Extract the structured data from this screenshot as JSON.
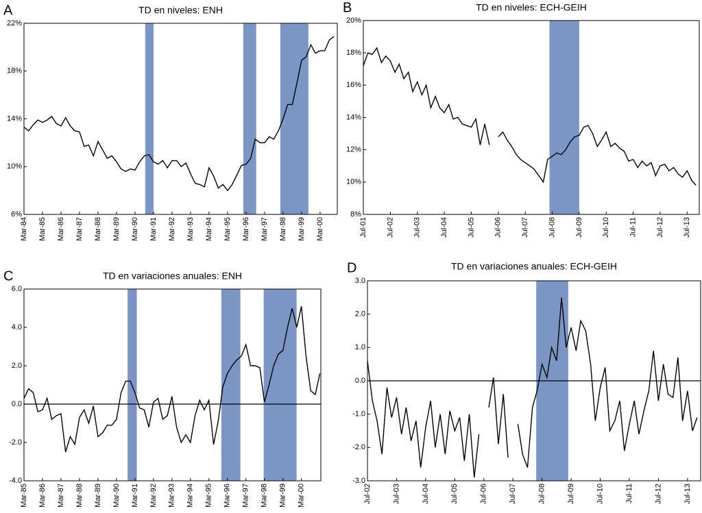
{
  "chart_data": [
    {
      "type": "line",
      "panel_label": "A",
      "title": "TD en niveles: ENH",
      "color": "#000000",
      "shade_color": "#7b96c4",
      "zero_line": false,
      "x": [
        1984,
        1984.25,
        1984.5,
        1984.75,
        1985,
        1985.25,
        1985.5,
        1985.75,
        1986,
        1986.25,
        1986.5,
        1986.75,
        1987,
        1987.25,
        1987.5,
        1987.75,
        1988,
        1988.25,
        1988.5,
        1988.75,
        1989,
        1989.25,
        1989.5,
        1989.75,
        1990,
        1990.25,
        1990.5,
        1990.75,
        1991,
        1991.25,
        1991.5,
        1991.75,
        1992,
        1992.25,
        1992.5,
        1992.75,
        1993,
        1993.25,
        1993.5,
        1993.75,
        1994,
        1994.25,
        1994.5,
        1994.75,
        1995,
        1995.25,
        1995.5,
        1995.75,
        1996,
        1996.25,
        1996.5,
        1996.75,
        1997,
        1997.25,
        1997.5,
        1997.75,
        1998,
        1998.25,
        1998.5,
        1998.75,
        1999,
        1999.25,
        1999.5,
        1999.75,
        2000,
        2000.25,
        2000.5,
        2000.75
      ],
      "values": [
        13.3,
        13.0,
        13.5,
        13.9,
        13.7,
        13.9,
        14.2,
        13.6,
        13.4,
        14.1,
        13.4,
        13.0,
        12.9,
        11.7,
        11.8,
        10.9,
        12.1,
        11.4,
        10.7,
        10.9,
        10.4,
        9.8,
        9.6,
        9.8,
        9.7,
        10.4,
        10.9,
        11.0,
        10.4,
        10.2,
        10.5,
        9.9,
        10.5,
        10.5,
        10.0,
        10.3,
        9.4,
        8.6,
        8.5,
        8.3,
        9.9,
        9.2,
        8.2,
        8.5,
        8.0,
        8.5,
        9.3,
        10.1,
        10.2,
        10.7,
        12.3,
        12.0,
        12.0,
        12.5,
        12.3,
        13.0,
        14.0,
        15.2,
        15.2,
        17.0,
        18.9,
        19.2,
        20.2,
        19.5,
        19.7,
        19.7,
        20.6,
        20.9
      ],
      "xlim": [
        1984,
        2000.93
      ],
      "xticks": [
        {
          "value": 1984,
          "label": "Mar-84"
        },
        {
          "value": 1985,
          "label": "Mar-85"
        },
        {
          "value": 1986,
          "label": "Mar-86"
        },
        {
          "value": 1987,
          "label": "Mar-87"
        },
        {
          "value": 1988,
          "label": "Mar-88"
        },
        {
          "value": 1989,
          "label": "Mar-89"
        },
        {
          "value": 1990,
          "label": "Mar-90"
        },
        {
          "value": 1991,
          "label": "Mar-91"
        },
        {
          "value": 1992,
          "label": "Mar-92"
        },
        {
          "value": 1993,
          "label": "Mar-93"
        },
        {
          "value": 1994,
          "label": "Mar-94"
        },
        {
          "value": 1995,
          "label": "Mar-95"
        },
        {
          "value": 1996,
          "label": "Mar-96"
        },
        {
          "value": 1997,
          "label": "Mar-97"
        },
        {
          "value": 1998,
          "label": "Mar-98"
        },
        {
          "value": 1999,
          "label": "Mar-99"
        },
        {
          "value": 2000,
          "label": "Mar-00"
        }
      ],
      "ylim": [
        6,
        22
      ],
      "yticks": [
        {
          "value": 6,
          "label": "6%"
        },
        {
          "value": 10,
          "label": "10%"
        },
        {
          "value": 14,
          "label": "14%"
        },
        {
          "value": 18,
          "label": "18%"
        },
        {
          "value": 22,
          "label": "22%"
        }
      ],
      "shaded": [
        [
          1990.55,
          1991.0
        ],
        [
          1995.85,
          1996.55
        ],
        [
          1997.85,
          1999.37
        ]
      ]
    },
    {
      "type": "line",
      "panel_label": "B",
      "title": "TD en niveles: ECH-GEIH",
      "color": "#000000",
      "shade_color": "#7b96c4",
      "zero_line": false,
      "x": [
        2001.5,
        2001.67,
        2001.83,
        2002,
        2002.17,
        2002.33,
        2002.5,
        2002.67,
        2002.83,
        2003,
        2003.17,
        2003.33,
        2003.5,
        2003.67,
        2003.83,
        2004,
        2004.17,
        2004.33,
        2004.5,
        2004.67,
        2004.83,
        2005,
        2005.17,
        2005.33,
        2005.5,
        2005.67,
        2005.83,
        2006,
        2006.17,
        2006.33,
        2006.5,
        2006.67,
        2006.83,
        2007,
        2007.17,
        2007.33,
        2007.5,
        2007.67,
        2007.83,
        2008,
        2008.17,
        2008.33,
        2008.5,
        2008.67,
        2008.83,
        2009,
        2009.17,
        2009.33,
        2009.5,
        2009.67,
        2009.83,
        2010,
        2010.17,
        2010.33,
        2010.5,
        2010.67,
        2010.83,
        2011,
        2011.17,
        2011.33,
        2011.5,
        2011.67,
        2011.83,
        2012,
        2012.17,
        2012.33,
        2012.5,
        2012.67,
        2012.83,
        2013,
        2013.17,
        2013.33,
        2013.5,
        2013.67,
        2013.83
      ],
      "values": [
        17.2,
        18.0,
        17.9,
        18.3,
        17.4,
        17.8,
        17.5,
        16.8,
        17.3,
        16.4,
        16.8,
        15.6,
        16.2,
        15.4,
        16.0,
        14.6,
        15.3,
        14.6,
        14.3,
        14.8,
        13.9,
        14.0,
        13.6,
        13.5,
        13.4,
        13.9,
        12.3,
        13.6,
        12.3,
        null,
        12.8,
        13.1,
        12.6,
        12.2,
        11.7,
        11.4,
        11.2,
        11.0,
        10.8,
        10.4,
        10.0,
        11.4,
        11.6,
        11.8,
        11.7,
        12.0,
        12.5,
        12.8,
        12.9,
        13.4,
        13.5,
        13.0,
        12.2,
        12.6,
        13.1,
        12.2,
        12.4,
        12.1,
        11.9,
        11.3,
        11.4,
        10.9,
        11.3,
        11.0,
        11.2,
        10.4,
        11.0,
        11.1,
        10.7,
        10.9,
        10.5,
        10.3,
        10.7,
        10.1,
        9.8
      ],
      "xlim": [
        2001.5,
        2013.95
      ],
      "xticks": [
        {
          "value": 2001.5,
          "label": "Jul-01"
        },
        {
          "value": 2002.5,
          "label": "Jul-02"
        },
        {
          "value": 2003.5,
          "label": "Jul-03"
        },
        {
          "value": 2004.5,
          "label": "Jul-04"
        },
        {
          "value": 2005.5,
          "label": "Jul-05"
        },
        {
          "value": 2006.5,
          "label": "Jul-06"
        },
        {
          "value": 2007.5,
          "label": "Jul-07"
        },
        {
          "value": 2008.5,
          "label": "Jul-08"
        },
        {
          "value": 2009.5,
          "label": "Jul-09"
        },
        {
          "value": 2010.5,
          "label": "Jul-10"
        },
        {
          "value": 2011.5,
          "label": "Jul-11"
        },
        {
          "value": 2012.5,
          "label": "Jul-12"
        },
        {
          "value": 2013.5,
          "label": "Jul-13"
        }
      ],
      "ylim": [
        8,
        20
      ],
      "yticks": [
        {
          "value": 8,
          "label": "8%"
        },
        {
          "value": 10,
          "label": "10%"
        },
        {
          "value": 12,
          "label": "12%"
        },
        {
          "value": 14,
          "label": "14%"
        },
        {
          "value": 16,
          "label": "16%"
        },
        {
          "value": 18,
          "label": "18%"
        },
        {
          "value": 20,
          "label": "20%"
        }
      ],
      "shaded": [
        [
          2008.4,
          2009.5
        ]
      ]
    },
    {
      "type": "line",
      "panel_label": "C",
      "title": "TD en variaciones anuales: ENH",
      "color": "#000000",
      "shade_color": "#7b96c4",
      "zero_line": true,
      "x": [
        1985,
        1985.25,
        1985.5,
        1985.75,
        1986,
        1986.25,
        1986.5,
        1986.75,
        1987,
        1987.25,
        1987.5,
        1987.75,
        1988,
        1988.25,
        1988.5,
        1988.75,
        1989,
        1989.25,
        1989.5,
        1989.75,
        1990,
        1990.25,
        1990.5,
        1990.75,
        1991,
        1991.25,
        1991.5,
        1991.75,
        1992,
        1992.25,
        1992.5,
        1992.75,
        1993,
        1993.25,
        1993.5,
        1993.75,
        1994,
        1994.25,
        1994.5,
        1994.75,
        1995,
        1995.25,
        1995.5,
        1995.75,
        1996,
        1996.25,
        1996.5,
        1996.75,
        1997,
        1997.25,
        1997.5,
        1997.75,
        1998,
        1998.25,
        1998.5,
        1998.75,
        1999,
        1999.25,
        1999.5,
        1999.75,
        2000,
        2000.25,
        2000.5,
        2000.75,
        2001
      ],
      "values": [
        0.3,
        0.8,
        0.6,
        -0.4,
        -0.3,
        0.3,
        -0.8,
        -0.6,
        -0.5,
        -2.5,
        -1.7,
        -2.1,
        -0.7,
        -0.3,
        -1.0,
        -0.1,
        -1.7,
        -1.5,
        -1.1,
        -1.1,
        -0.8,
        0.6,
        1.2,
        1.2,
        0.6,
        -0.2,
        -0.3,
        -1.2,
        0.1,
        0.3,
        -0.8,
        -0.6,
        0.4,
        -1.2,
        -2.0,
        -1.6,
        -2.0,
        -0.6,
        0.2,
        -0.3,
        0.2,
        -2.1,
        -0.9,
        0.9,
        1.6,
        2.0,
        2.3,
        2.5,
        3.1,
        2.0,
        2.0,
        1.9,
        0.1,
        1.0,
        2.0,
        2.6,
        2.8,
        4.0,
        5.0,
        4.0,
        5.1,
        2.5,
        0.7,
        0.5,
        1.6
      ],
      "xlim": [
        1985,
        2001.05
      ],
      "xticks": [
        {
          "value": 1985,
          "label": "Mar-85"
        },
        {
          "value": 1986,
          "label": "Mar-86"
        },
        {
          "value": 1987,
          "label": "Mar-87"
        },
        {
          "value": 1988,
          "label": "Mar-88"
        },
        {
          "value": 1989,
          "label": "Mar-89"
        },
        {
          "value": 1990,
          "label": "Mar-90"
        },
        {
          "value": 1991,
          "label": "Mar-91"
        },
        {
          "value": 1992,
          "label": "Mar-92"
        },
        {
          "value": 1993,
          "label": "Mar-93"
        },
        {
          "value": 1994,
          "label": "Mar-94"
        },
        {
          "value": 1995,
          "label": "Mar-95"
        },
        {
          "value": 1996,
          "label": "Mar-96"
        },
        {
          "value": 1997,
          "label": "Mar-97"
        },
        {
          "value": 1998,
          "label": "Mar-98"
        },
        {
          "value": 1999,
          "label": "Mar-99"
        },
        {
          "value": 2000,
          "label": "Mar-00"
        }
      ],
      "ylim": [
        -4,
        6
      ],
      "yticks": [
        {
          "value": -4,
          "label": "-4.0"
        },
        {
          "value": -2,
          "label": "-2.0"
        },
        {
          "value": 0,
          "label": "0.0"
        },
        {
          "value": 2,
          "label": "2.0"
        },
        {
          "value": 4,
          "label": "4.0"
        },
        {
          "value": 6,
          "label": "6.0"
        }
      ],
      "shaded": [
        [
          1990.6,
          1991.1
        ],
        [
          1995.67,
          1996.7
        ],
        [
          1997.96,
          1999.74
        ]
      ]
    },
    {
      "type": "line",
      "panel_label": "D",
      "title": "TD en variaciones anuales: ECH-GEIH",
      "color": "#000000",
      "shade_color": "#7b96c4",
      "zero_line": true,
      "x": [
        2002.5,
        2002.67,
        2002.83,
        2003,
        2003.17,
        2003.33,
        2003.5,
        2003.67,
        2003.83,
        2004,
        2004.17,
        2004.33,
        2004.5,
        2004.67,
        2004.83,
        2005,
        2005.17,
        2005.33,
        2005.5,
        2005.67,
        2005.83,
        2006,
        2006.17,
        2006.33,
        2006.5,
        2006.67,
        2006.83,
        2007,
        2007.17,
        2007.33,
        2007.5,
        2007.67,
        2007.83,
        2008,
        2008.17,
        2008.33,
        2008.5,
        2008.67,
        2008.83,
        2009,
        2009.17,
        2009.33,
        2009.5,
        2009.67,
        2009.83,
        2010,
        2010.17,
        2010.33,
        2010.5,
        2010.67,
        2010.83,
        2011,
        2011.17,
        2011.33,
        2011.5,
        2011.67,
        2011.83,
        2012,
        2012.17,
        2012.33,
        2012.5,
        2012.67,
        2012.83,
        2013,
        2013.17,
        2013.33,
        2013.5,
        2013.67,
        2013.83
      ],
      "values": [
        0.6,
        -0.6,
        -1.2,
        -2.2,
        -0.2,
        -1.1,
        -0.5,
        -1.6,
        -0.8,
        -1.8,
        -1.2,
        -2.6,
        -1.4,
        -0.6,
        -2.0,
        -1.0,
        -2.2,
        -0.9,
        -1.5,
        -1.1,
        -2.4,
        -1.0,
        -2.9,
        -1.6,
        null,
        -0.8,
        0.1,
        -1.9,
        -0.4,
        -2.3,
        null,
        -1.3,
        -2.2,
        -2.6,
        -0.8,
        -0.3,
        0.5,
        0.1,
        1.0,
        0.6,
        2.5,
        1.0,
        1.6,
        0.9,
        1.8,
        1.5,
        0.5,
        -1.2,
        -0.2,
        0.4,
        -1.5,
        -1.2,
        -0.6,
        -2.1,
        -1.3,
        -0.6,
        -1.6,
        -0.9,
        -0.3,
        0.9,
        -0.6,
        0.5,
        -0.4,
        -0.5,
        0.7,
        -1.2,
        -0.3,
        -1.5,
        -1.1
      ],
      "xlim": [
        2002.5,
        2013.95
      ],
      "xticks": [
        {
          "value": 2002.5,
          "label": "Jul-02"
        },
        {
          "value": 2003.5,
          "label": "Jul-03"
        },
        {
          "value": 2004.5,
          "label": "Jul-04"
        },
        {
          "value": 2005.5,
          "label": "Jul-05"
        },
        {
          "value": 2006.5,
          "label": "Jul-06"
        },
        {
          "value": 2007.5,
          "label": "Jul-07"
        },
        {
          "value": 2008.5,
          "label": "Jul-08"
        },
        {
          "value": 2009.5,
          "label": "Jul-09"
        },
        {
          "value": 2010.5,
          "label": "Jul-10"
        },
        {
          "value": 2011.5,
          "label": "Jul-11"
        },
        {
          "value": 2012.5,
          "label": "Jul-12"
        },
        {
          "value": 2013.5,
          "label": "Jul-13"
        }
      ],
      "ylim": [
        -3,
        3
      ],
      "yticks": [
        {
          "value": -3,
          "label": "-3.0"
        },
        {
          "value": -2,
          "label": "-2.0"
        },
        {
          "value": -1,
          "label": "-1.0"
        },
        {
          "value": 0,
          "label": "0.0"
        },
        {
          "value": 1,
          "label": "1.0"
        },
        {
          "value": 2,
          "label": "2.0"
        },
        {
          "value": 3,
          "label": "3.0"
        }
      ],
      "shaded": [
        [
          2008.3,
          2009.4
        ]
      ]
    }
  ]
}
